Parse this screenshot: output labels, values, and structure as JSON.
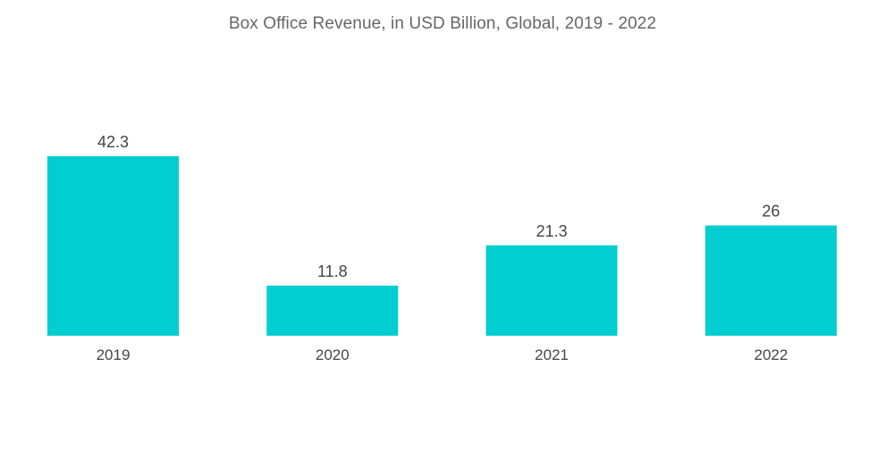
{
  "chart_data": {
    "type": "bar",
    "title": "Box Office Revenue, in USD Billion, Global, 2019 - 2022",
    "categories": [
      "2019",
      "2020",
      "2021",
      "2022"
    ],
    "values": [
      42.3,
      11.8,
      21.3,
      26
    ],
    "value_labels": [
      "42.3",
      "11.8",
      "21.3",
      "26"
    ],
    "xlabel": "",
    "ylabel": "",
    "ylim": [
      0,
      42.3
    ],
    "grid": false,
    "legend": "none",
    "bar_color": "#00CED1"
  }
}
